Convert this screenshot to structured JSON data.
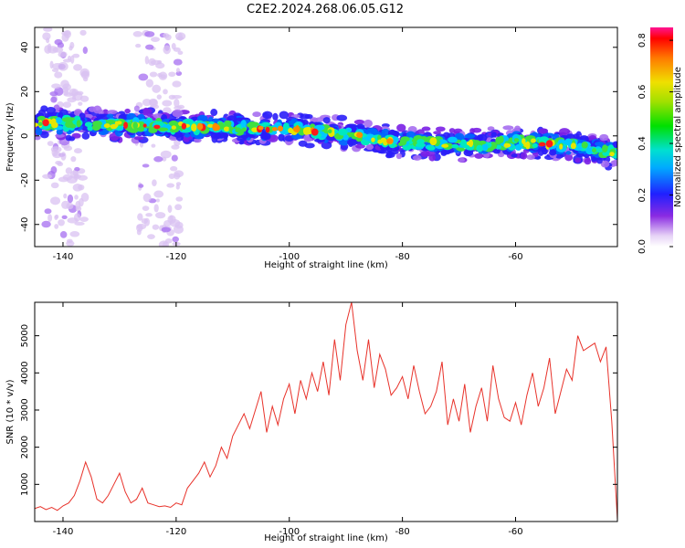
{
  "title": "C2E2.2024.268.06.05.G12",
  "chart_data": [
    {
      "type": "heatmap",
      "xlabel": "Height of straight line (km)",
      "ylabel": "Frequency (Hz)",
      "xlim": [
        -145,
        -42
      ],
      "ylim": [
        -50,
        49
      ],
      "xticks": [
        -140,
        -120,
        -100,
        -80,
        -60
      ],
      "yticks": [
        -40,
        -20,
        0,
        20,
        40
      ],
      "colorbar": {
        "label": "Normalized spectral amplitude",
        "range": [
          0,
          0.85
        ],
        "ticks": [
          "0.0",
          "0.2",
          "0.4",
          "0.6",
          "0.8"
        ]
      },
      "ridge": {
        "description_free_values": true,
        "x": [
          -145,
          -130,
          -115,
          -100,
          -90,
          -80,
          -70,
          -60,
          -50,
          -42
        ],
        "frequency_hz": [
          6,
          5,
          4,
          3,
          1,
          -3,
          -4,
          -3,
          -4,
          -8
        ]
      },
      "noise_columns_x": [
        [
          -143,
          -136
        ],
        [
          -127,
          -119
        ]
      ],
      "grid": false
    },
    {
      "type": "line",
      "xlabel": "Height of straight line (km)",
      "ylabel": "SNR (10 * v/v)",
      "xlim": [
        -145,
        -42
      ],
      "ylim": [
        0,
        5900
      ],
      "xticks": [
        -140,
        -120,
        -100,
        -80,
        -60
      ],
      "yticks": [
        1000,
        2000,
        3000,
        4000,
        5000
      ],
      "color": "#e8322a",
      "series": [
        {
          "x": [
            -145,
            -144,
            -143,
            -142,
            -141,
            -140,
            -139,
            -138,
            -137,
            -136,
            -135,
            -134,
            -133,
            -132,
            -131,
            -130,
            -129,
            -128,
            -127,
            -126,
            -125,
            -124,
            -123,
            -122,
            -121,
            -120,
            -119,
            -118,
            -117,
            -116,
            -115,
            -114,
            -113,
            -112,
            -111,
            -110,
            -109,
            -108,
            -107,
            -106,
            -105,
            -104,
            -103,
            -102,
            -101,
            -100,
            -99,
            -98,
            -97,
            -96,
            -95,
            -94,
            -93,
            -92,
            -91,
            -90,
            -89,
            -88,
            -87,
            -86,
            -85,
            -84,
            -83,
            -82,
            -81,
            -80,
            -79,
            -78,
            -77,
            -76,
            -75,
            -74,
            -73,
            -72,
            -71,
            -70,
            -69,
            -68,
            -67,
            -66,
            -65,
            -64,
            -63,
            -62,
            -61,
            -60,
            -59,
            -58,
            -57,
            -56,
            -55,
            -54,
            -53,
            -52,
            -51,
            -50,
            -49,
            -48,
            -47,
            -46,
            -45,
            -44,
            -43,
            -42
          ],
          "values": [
            350,
            400,
            320,
            380,
            300,
            420,
            500,
            700,
            1100,
            1600,
            1200,
            600,
            500,
            700,
            1000,
            1300,
            800,
            500,
            600,
            900,
            500,
            450,
            400,
            420,
            380,
            500,
            450,
            900,
            1100,
            1300,
            1600,
            1200,
            1500,
            2000,
            1700,
            2300,
            2600,
            2900,
            2500,
            3000,
            3500,
            2400,
            3100,
            2600,
            3300,
            3700,
            2900,
            3800,
            3300,
            4000,
            3500,
            4300,
            3400,
            4900,
            3800,
            5300,
            5900,
            4600,
            3800,
            4900,
            3600,
            4500,
            4100,
            3400,
            3600,
            3900,
            3300,
            4200,
            3500,
            2900,
            3100,
            3500,
            4300,
            2600,
            3300,
            2700,
            3700,
            2400,
            3100,
            3600,
            2700,
            4200,
            3300,
            2800,
            2700,
            3200,
            2600,
            3400,
            4000,
            3100,
            3600,
            4400,
            2900,
            3500,
            4100,
            3800,
            5000,
            4600,
            4700,
            4800,
            4300,
            4700,
            2700,
            50
          ]
        }
      ]
    }
  ]
}
